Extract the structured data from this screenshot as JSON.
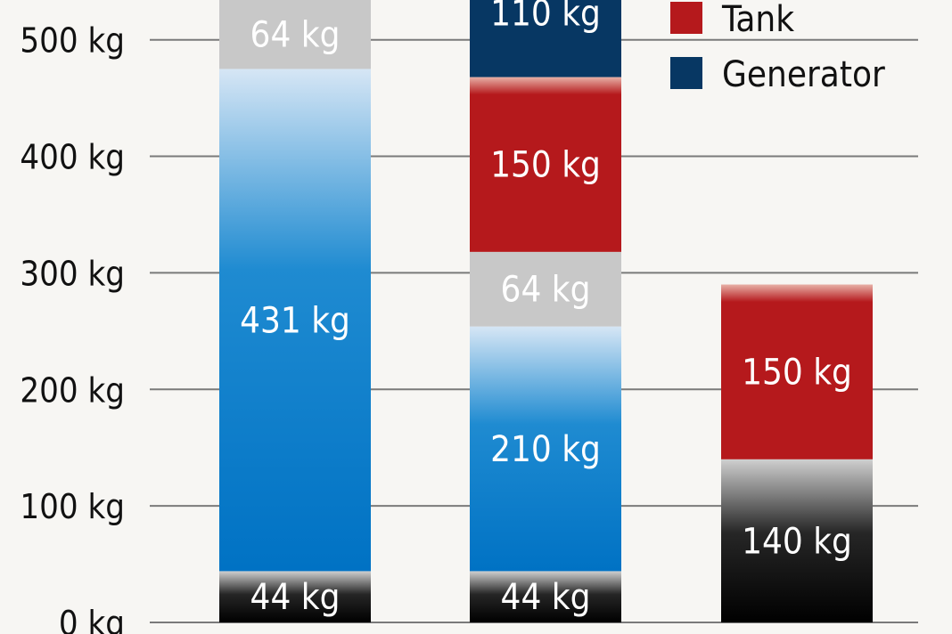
{
  "chart_data": {
    "type": "bar",
    "stacked": true,
    "categories": [
      "",
      "",
      ""
    ],
    "y_ticks": [
      {
        "value": 0,
        "label": "0 kg"
      },
      {
        "value": 100,
        "label": "100 kg"
      },
      {
        "value": 200,
        "label": "200 kg"
      },
      {
        "value": 300,
        "label": "300 kg"
      },
      {
        "value": 400,
        "label": "400 kg"
      },
      {
        "value": 500,
        "label": "500 kg"
      }
    ],
    "ylim": [
      0,
      540
    ],
    "grid": true,
    "legend_position": "top-right",
    "legend": [
      {
        "name": "Tank",
        "color": "#b5191c"
      },
      {
        "name": "Generator",
        "color": "#073763"
      }
    ],
    "bars": [
      {
        "segments": [
          {
            "value": 44,
            "label": "44 kg",
            "fill": "black"
          },
          {
            "value": 431,
            "label": "431 kg",
            "fill": "blue"
          },
          {
            "value": 64,
            "label": "64 kg",
            "fill": "gray"
          }
        ]
      },
      {
        "segments": [
          {
            "value": 44,
            "label": "44 kg",
            "fill": "black"
          },
          {
            "value": 210,
            "label": "210 kg",
            "fill": "blue"
          },
          {
            "value": 64,
            "label": "64 kg",
            "fill": "gray"
          },
          {
            "value": 150,
            "label": "150 kg",
            "fill": "red"
          },
          {
            "value": 110,
            "label": "110 kg",
            "fill": "navy"
          }
        ]
      },
      {
        "segments": [
          {
            "value": 140,
            "label": "140 kg",
            "fill": "black"
          },
          {
            "value": 150,
            "label": "150 kg",
            "fill": "red"
          }
        ]
      }
    ]
  }
}
